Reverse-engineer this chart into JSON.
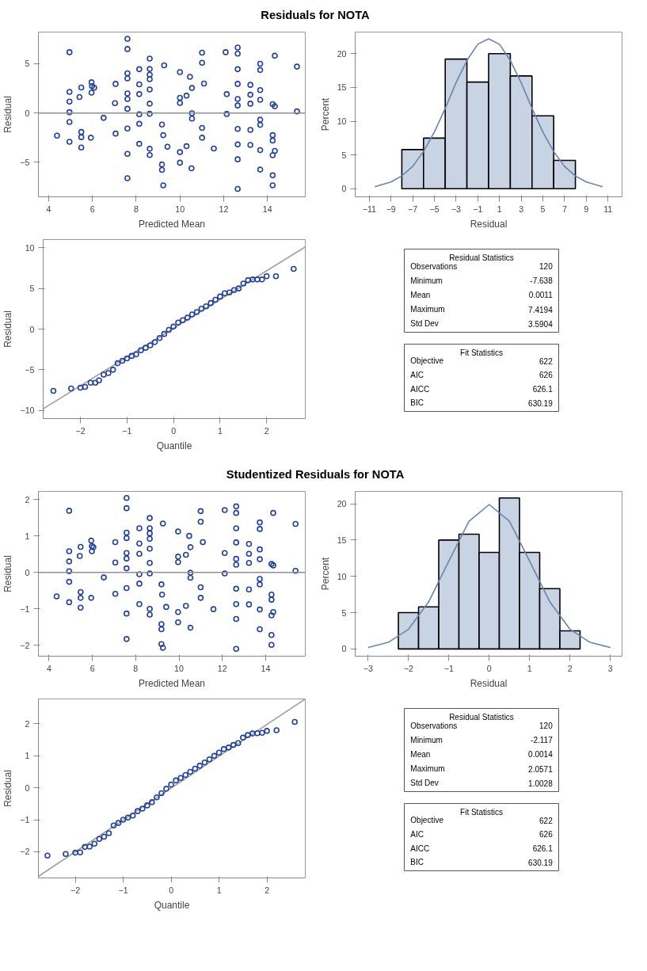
{
  "chart_data": [
    {
      "type": "scatter",
      "title": "Residuals for NOTA",
      "xlabel": "Predicted Mean",
      "ylabel": "Residual",
      "xlim": [
        3.53,
        15.73
      ],
      "ylim": [
        -8.5,
        8.2
      ],
      "xticks": [
        4,
        6,
        8,
        10,
        12,
        14
      ],
      "yticks": [
        -5,
        0,
        5
      ],
      "marker": "circle",
      "color": "#2040a0",
      "ref_lines": [
        {
          "axis": "y",
          "value": 0,
          "color": "#909090"
        }
      ],
      "x": [
        4.38,
        4.95,
        4.95,
        4.95,
        4.95,
        4.95,
        4.95,
        5.41,
        5.49,
        5.49,
        5.49,
        5.49,
        5.93,
        5.96,
        5.98,
        5.96,
        6.08,
        6.51,
        7.06,
        7.03,
        7.06,
        7.6,
        7.6,
        7.6,
        7.6,
        7.6,
        7.6,
        7.6,
        7.6,
        7.6,
        7.6,
        8.14,
        8.14,
        8.14,
        8.14,
        8.14,
        8.14,
        8.62,
        8.62,
        8.62,
        8.62,
        8.62,
        8.62,
        8.62,
        8.62,
        8.62,
        9.28,
        9.18,
        9.24,
        9.43,
        9.18,
        9.18,
        9.24,
        10.0,
        10.0,
        10.0,
        10.0,
        10.0,
        10.3,
        10.46,
        10.55,
        10.55,
        10.55,
        10.3,
        10.53,
        11.01,
        11.01,
        11.1,
        11.01,
        11.01,
        11.55,
        12.09,
        12.14,
        12.14,
        12.64,
        12.64,
        12.64,
        12.64,
        12.64,
        12.64,
        12.64,
        12.64,
        12.64,
        12.64,
        13.22,
        13.22,
        13.22,
        13.22,
        13.22,
        13.67,
        13.67,
        13.67,
        13.67,
        13.67,
        13.67,
        13.67,
        13.67,
        14.34,
        14.24,
        14.34,
        14.24,
        14.24,
        14.34,
        14.24,
        14.24,
        14.24,
        15.35,
        15.35
      ],
      "values": [
        -2.3,
        6.16,
        2.14,
        1.15,
        0.08,
        -0.91,
        -2.92,
        1.62,
        2.58,
        -1.93,
        -2.45,
        -3.5,
        -2.51,
        3.11,
        2.72,
        2.06,
        2.56,
        -0.5,
        2.95,
        0.99,
        -2.09,
        7.52,
        6.48,
        4.02,
        3.5,
        1.98,
        1.41,
        0.42,
        -1.57,
        -4.15,
        -6.61,
        4.44,
        2.9,
        1.91,
        -0.13,
        -1.1,
        -3.13,
        5.51,
        4.46,
        3.89,
        3.42,
        2.38,
        0.94,
        -0.08,
        -3.63,
        -4.26,
        4.83,
        -1.17,
        -2.25,
        -3.42,
        -5.22,
        -5.77,
        -7.34,
        4.15,
        1.54,
        1.02,
        -3.97,
        -5.04,
        1.75,
        3.66,
        2.53,
        -0.03,
        -0.57,
        -3.37,
        -5.61,
        6.11,
        5.09,
        2.98,
        -1.51,
        -2.51,
        -3.6,
        6.16,
        1.91,
        -0.1,
        6.63,
        6.01,
        4.44,
        2.95,
        1.41,
        0.76,
        -1.62,
        -3.19,
        -4.7,
        -7.7,
        2.85,
        1.85,
        0.94,
        -1.72,
        -3.24,
        4.99,
        4.36,
        2.32,
        1.33,
        -0.68,
        -1.2,
        -3.76,
        -5.74,
        5.8,
        0.89,
        0.68,
        -2.25,
        -2.79,
        -3.84,
        -4.28,
        -6.32,
        -7.34,
        4.7,
        0.16
      ]
    },
    {
      "type": "histogram",
      "xlabel": "Residual",
      "ylabel": "Percent",
      "xlim": [
        -12.3,
        12.3
      ],
      "ylim": [
        -1.2,
        23.2
      ],
      "xticks": [
        -11,
        -9,
        -7,
        -5,
        -3,
        -1,
        1,
        3,
        5,
        7,
        9,
        11
      ],
      "yticks": [
        0,
        5,
        10,
        15,
        20
      ],
      "series": [
        {
          "type": "histogram",
          "color": "#c8d3e4",
          "bins": [
            -8,
            -6,
            -4,
            -2,
            0,
            2,
            4,
            6,
            8
          ],
          "values": [
            5.8,
            7.5,
            19.2,
            15.8,
            20.0,
            16.7,
            10.8,
            4.2
          ]
        },
        {
          "type": "line",
          "color": "#6a84ad",
          "x": [
            -10.5,
            -9,
            -8,
            -7,
            -6,
            -5,
            -4,
            -3,
            -2,
            -1,
            0,
            1,
            2,
            3,
            4,
            5,
            6,
            7,
            8,
            9,
            10.5
          ],
          "values": [
            0.3,
            1.0,
            1.9,
            3.3,
            5.5,
            8.4,
            11.9,
            15.7,
            19.0,
            21.4,
            22.2,
            21.4,
            19.0,
            15.7,
            11.9,
            8.4,
            5.5,
            3.3,
            1.9,
            1.0,
            0.3
          ]
        }
      ]
    },
    {
      "type": "scatter",
      "xlabel": "Quantile",
      "ylabel": "Residual",
      "xlim": [
        -2.8,
        2.83
      ],
      "ylim": [
        -11,
        11
      ],
      "xticks": [
        -2,
        -1,
        0,
        1,
        2
      ],
      "yticks": [
        -10,
        -5,
        0,
        5,
        10
      ],
      "series": [
        {
          "type": "line",
          "color": "#a0a0a0",
          "x": [
            -2.8,
            2.83
          ],
          "values": [
            -9.8,
            10.1
          ]
        },
        {
          "type": "scatter",
          "marker": "circle",
          "color": "#2040a0",
          "x": [
            -2.58,
            -2.2,
            -2.0,
            -1.9,
            -1.78,
            -1.68,
            -1.6,
            -1.5,
            -1.4,
            -1.3,
            -1.2,
            -1.1,
            -1.0,
            -0.9,
            -0.8,
            -0.7,
            -0.6,
            -0.5,
            -0.4,
            -0.3,
            -0.2,
            -0.1,
            0.0,
            0.1,
            0.2,
            0.3,
            0.4,
            0.5,
            0.6,
            0.7,
            0.8,
            0.9,
            1.0,
            1.1,
            1.2,
            1.3,
            1.4,
            1.5,
            1.6,
            1.7,
            1.8,
            1.9,
            2.0,
            2.2,
            2.58
          ],
          "values": [
            -7.6,
            -7.3,
            -7.2,
            -7.1,
            -6.6,
            -6.6,
            -6.3,
            -5.6,
            -5.4,
            -5.0,
            -4.2,
            -3.9,
            -3.6,
            -3.3,
            -3.1,
            -2.6,
            -2.3,
            -2.0,
            -1.6,
            -1.1,
            -0.6,
            -0.1,
            0.3,
            0.8,
            1.1,
            1.4,
            1.8,
            2.1,
            2.5,
            2.8,
            3.2,
            3.6,
            4.0,
            4.4,
            4.5,
            4.8,
            5.0,
            5.6,
            6.0,
            6.1,
            6.1,
            6.1,
            6.5,
            6.5,
            7.4
          ]
        }
      ]
    },
    {
      "type": "other",
      "title": "Residual Statistics",
      "categories": [
        "Observations",
        "Minimum",
        "Mean",
        "Maximum",
        "Std Dev"
      ],
      "value_labels": [
        "120",
        "-7.638",
        "0.0011",
        "7.4194",
        "3.5904"
      ]
    },
    {
      "type": "other",
      "title": "Fit Statistics",
      "categories": [
        "Objective",
        "AIC",
        "AICC",
        "BIC"
      ],
      "value_labels": [
        "622",
        "626",
        "626.1",
        "630.19"
      ]
    },
    {
      "type": "scatter",
      "title": "Studentized Residuals for NOTA",
      "xlabel": "Predicted Mean",
      "ylabel": "Residual",
      "xlim": [
        3.51,
        15.83
      ],
      "ylim": [
        -2.3,
        2.22
      ],
      "xticks": [
        4,
        6,
        8,
        10,
        12,
        14
      ],
      "yticks": [
        -2,
        -1,
        0,
        1,
        2
      ],
      "marker": "circle",
      "color": "#2040a0",
      "ref_lines": [
        {
          "axis": "y",
          "value": 0,
          "color": "#909090"
        }
      ],
      "x": [
        4.35,
        4.93,
        4.93,
        4.93,
        4.93,
        4.93,
        4.93,
        5.42,
        5.46,
        5.46,
        5.46,
        5.46,
        5.95,
        5.95,
        5.98,
        5.98,
        6.05,
        6.53,
        7.06,
        7.06,
        7.06,
        7.58,
        7.58,
        7.58,
        7.58,
        7.58,
        7.58,
        7.58,
        7.58,
        7.58,
        7.58,
        8.17,
        8.17,
        8.17,
        8.17,
        8.17,
        8.17,
        8.65,
        8.65,
        8.65,
        8.65,
        8.65,
        8.65,
        8.65,
        8.65,
        8.65,
        9.26,
        9.19,
        9.22,
        9.41,
        9.19,
        9.19,
        9.19,
        9.26,
        9.96,
        9.96,
        9.96,
        9.96,
        9.96,
        10.32,
        10.47,
        10.53,
        10.53,
        10.53,
        10.32,
        10.53,
        11.0,
        11.0,
        11.1,
        11.0,
        11.0,
        11.59,
        12.11,
        12.11,
        12.11,
        12.64,
        12.64,
        12.64,
        12.64,
        12.64,
        12.64,
        12.64,
        12.64,
        12.64,
        12.64,
        13.23,
        13.23,
        13.23,
        13.23,
        13.23,
        13.73,
        13.73,
        13.73,
        13.73,
        13.73,
        13.73,
        13.73,
        13.73,
        14.35,
        14.27,
        14.35,
        14.27,
        14.27,
        14.35,
        14.27,
        14.27,
        14.27,
        15.38,
        15.38
      ],
      "values": [
        -0.66,
        1.69,
        0.58,
        0.3,
        0.03,
        -0.26,
        -0.82,
        0.45,
        0.7,
        -0.54,
        -0.7,
        -0.97,
        -0.7,
        0.87,
        0.72,
        0.58,
        0.69,
        -0.14,
        0.83,
        0.27,
        -0.59,
        2.04,
        1.76,
        1.09,
        0.94,
        0.53,
        0.38,
        0.11,
        -0.43,
        -1.13,
        -1.83,
        1.21,
        0.79,
        0.51,
        -0.05,
        -0.31,
        -0.87,
        1.49,
        1.21,
        1.07,
        0.92,
        0.65,
        0.26,
        -0.03,
        -1.0,
        -1.16,
        1.34,
        -0.33,
        -0.61,
        -0.95,
        -1.42,
        -1.56,
        -1.97,
        -2.07,
        1.12,
        0.43,
        0.28,
        -1.09,
        -1.37,
        0.48,
        1.0,
        0.69,
        -0.01,
        -0.15,
        -0.92,
        -1.52,
        1.68,
        1.39,
        0.83,
        -0.41,
        -0.7,
        -1.01,
        1.71,
        0.53,
        -0.03,
        1.81,
        1.63,
        1.21,
        0.82,
        0.37,
        0.21,
        -0.45,
        -0.87,
        -1.28,
        -2.1,
        0.78,
        0.51,
        0.26,
        -0.47,
        -0.88,
        1.37,
        1.19,
        0.63,
        0.36,
        -0.18,
        -0.33,
        -1.02,
        -1.56,
        1.63,
        0.23,
        0.19,
        -0.61,
        -0.75,
        -1.09,
        -1.18,
        -1.72,
        -1.99,
        1.33,
        0.04
      ]
    },
    {
      "type": "histogram",
      "xlabel": "Residual",
      "ylabel": "Percent",
      "xlim": [
        -3.32,
        3.29
      ],
      "ylim": [
        -1.0,
        21.7
      ],
      "xticks": [
        -3,
        -2,
        -1,
        0,
        1,
        2,
        3
      ],
      "yticks": [
        0,
        5,
        10,
        15,
        20
      ],
      "series": [
        {
          "type": "histogram",
          "color": "#c8d3e4",
          "bins": [
            -2.25,
            -1.75,
            -1.25,
            -0.75,
            -0.25,
            0.25,
            0.75,
            1.25,
            1.75,
            2.25
          ],
          "values": [
            5.0,
            5.8,
            15.0,
            15.8,
            13.3,
            20.8,
            13.3,
            8.3,
            2.5
          ]
        },
        {
          "type": "line",
          "color": "#6a84ad",
          "x": [
            -3,
            -2.5,
            -2,
            -1.5,
            -1,
            -0.5,
            0,
            0.5,
            1,
            1.5,
            2,
            2.5,
            3
          ],
          "values": [
            0.2,
            0.9,
            2.7,
            6.5,
            12.1,
            17.6,
            19.9,
            17.6,
            12.1,
            6.5,
            2.7,
            0.9,
            0.2
          ]
        }
      ]
    },
    {
      "type": "scatter",
      "xlabel": "Quantile",
      "ylabel": "Residual",
      "xlim": [
        -2.77,
        2.8
      ],
      "ylim": [
        -2.82,
        2.78
      ],
      "xticks": [
        -2,
        -1,
        0,
        1,
        2
      ],
      "yticks": [
        -2,
        -1,
        0,
        1,
        2
      ],
      "series": [
        {
          "type": "line",
          "color": "#a0a0a0",
          "x": [
            -2.77,
            2.8
          ],
          "values": [
            -2.77,
            2.78
          ]
        },
        {
          "type": "scatter",
          "marker": "circle",
          "color": "#2040a0",
          "x": [
            -2.58,
            -2.2,
            -2.0,
            -1.9,
            -1.8,
            -1.7,
            -1.6,
            -1.5,
            -1.4,
            -1.3,
            -1.2,
            -1.1,
            -1.0,
            -0.9,
            -0.8,
            -0.7,
            -0.6,
            -0.5,
            -0.4,
            -0.3,
            -0.2,
            -0.1,
            0.0,
            0.1,
            0.2,
            0.3,
            0.4,
            0.5,
            0.6,
            0.7,
            0.8,
            0.9,
            1.0,
            1.1,
            1.2,
            1.3,
            1.4,
            1.5,
            1.6,
            1.7,
            1.8,
            1.9,
            2.0,
            2.2,
            2.58
          ],
          "values": [
            -2.12,
            -2.07,
            -2.03,
            -2.02,
            -1.85,
            -1.84,
            -1.75,
            -1.6,
            -1.53,
            -1.42,
            -1.18,
            -1.1,
            -1.0,
            -0.93,
            -0.87,
            -0.73,
            -0.65,
            -0.55,
            -0.45,
            -0.3,
            -0.17,
            -0.03,
            0.1,
            0.23,
            0.31,
            0.4,
            0.5,
            0.6,
            0.69,
            0.79,
            0.89,
            1.0,
            1.1,
            1.21,
            1.26,
            1.34,
            1.4,
            1.57,
            1.65,
            1.7,
            1.71,
            1.72,
            1.78,
            1.8,
            2.06
          ]
        }
      ]
    },
    {
      "type": "other",
      "title": "Residual Statistics",
      "categories": [
        "Observations",
        "Minimum",
        "Mean",
        "Maximum",
        "Std Dev"
      ],
      "value_labels": [
        "120",
        "-2.117",
        "0.0014",
        "2.0571",
        "1.0028"
      ]
    },
    {
      "type": "other",
      "title": "Fit Statistics",
      "categories": [
        "Objective",
        "AIC",
        "AICC",
        "BIC"
      ],
      "value_labels": [
        "622",
        "626",
        "626.1",
        "630.19"
      ]
    }
  ]
}
